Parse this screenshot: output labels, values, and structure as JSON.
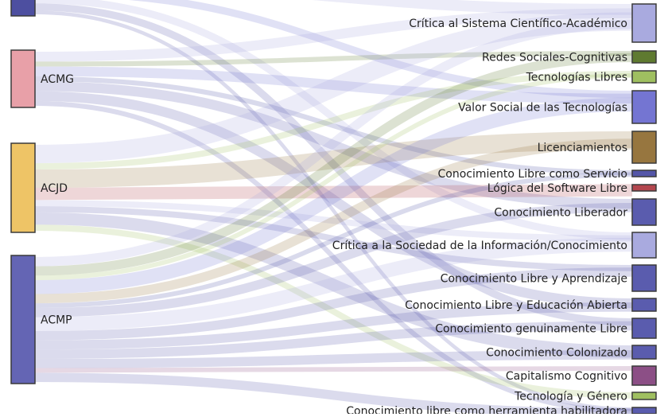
{
  "sankey": {
    "sources": [
      {
        "id": "s0",
        "label": "",
        "color": "#4d4fa0",
        "flows": [
          [
            0,
            3
          ],
          [
            3,
            2
          ],
          [
            8,
            2
          ],
          [
            11,
            2
          ],
          [
            15,
            1
          ]
        ]
      },
      {
        "id": "s1",
        "label": "ACMG",
        "color": "#e8a0a8",
        "flows": [
          [
            0,
            2
          ],
          [
            1,
            1
          ],
          [
            3,
            2
          ],
          [
            5,
            1
          ],
          [
            7,
            2
          ],
          [
            10,
            2
          ],
          [
            15,
            1
          ]
        ]
      },
      {
        "id": "s2",
        "label": "ACJD",
        "color": "#eec466",
        "flows": [
          [
            0,
            3
          ],
          [
            2,
            1
          ],
          [
            4,
            3
          ],
          [
            6,
            2
          ],
          [
            8,
            1
          ],
          [
            9,
            1
          ],
          [
            12,
            2
          ],
          [
            14,
            1
          ]
        ]
      },
      {
        "id": "s3",
        "label": "ACMP",
        "color": "#6465b4",
        "flows": [
          [
            0,
            2
          ],
          [
            1,
            2
          ],
          [
            2,
            1
          ],
          [
            3,
            3
          ],
          [
            4,
            2
          ],
          [
            5,
            1
          ],
          [
            7,
            2
          ],
          [
            8,
            3
          ],
          [
            9,
            2
          ],
          [
            10,
            2
          ],
          [
            11,
            2
          ],
          [
            12,
            2
          ],
          [
            13,
            1
          ],
          [
            15,
            2
          ]
        ]
      }
    ],
    "targets": [
      {
        "id": "t0",
        "label": "Crítica al Sistema Científico-Académico",
        "color": "#a9aadf"
      },
      {
        "id": "t1",
        "label": "Redes Sociales-Cognitivas",
        "color": "#5f7a30"
      },
      {
        "id": "t2",
        "label": "Tecnologías Libres",
        "color": "#9fbf60"
      },
      {
        "id": "t3",
        "label": "Valor Social de las Tecnologías",
        "color": "#7475d2"
      },
      {
        "id": "t4",
        "label": "Licenciamientos",
        "color": "#97763f"
      },
      {
        "id": "t5",
        "label": "Conocimiento Libre como Servicio",
        "color": "#5456a8"
      },
      {
        "id": "t6",
        "label": "Lógica del Software Libre",
        "color": "#b3464e"
      },
      {
        "id": "t7",
        "label": "Conocimiento Liberador",
        "color": "#5a5cae"
      },
      {
        "id": "t8",
        "label": "Crítica a la Sociedad de la Información/Conocimiento",
        "color": "#a9aadf"
      },
      {
        "id": "t9",
        "label": "Conocimiento Libre y Aprendizaje",
        "color": "#5a5cae"
      },
      {
        "id": "t10",
        "label": "Conocimiento Libre y Educación Abierta",
        "color": "#5a5cae"
      },
      {
        "id": "t11",
        "label": "Conocimiento genuinamente Libre",
        "color": "#5a5cae"
      },
      {
        "id": "t12",
        "label": "Conocimiento Colonizado",
        "color": "#5a5cae"
      },
      {
        "id": "t13",
        "label": "Capitalismo Cognitivo",
        "color": "#8c4f86"
      },
      {
        "id": "t14",
        "label": "Tecnología y Género",
        "color": "#9fbf60"
      },
      {
        "id": "t15",
        "label": "Conocimiento libre como herramienta habilitadora",
        "color": "#5a5cae"
      }
    ]
  }
}
